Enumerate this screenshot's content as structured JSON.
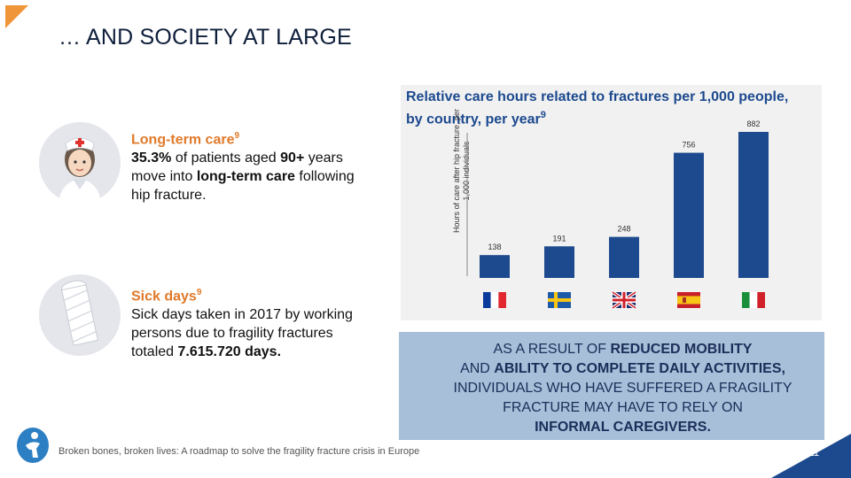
{
  "slide": {
    "title": "… AND SOCIETY AT LARGE",
    "page_number": "11",
    "footer": "Broken bones, broken lives: A roadmap to solve the fragility fracture crisis in Europe",
    "colors": {
      "accent": "#f0953a",
      "bar": "#1d4a8f",
      "callout_bg": "#a7bfd9"
    }
  },
  "long_term_care": {
    "heading": "Long-term care",
    "sup": "9",
    "line1_bold": "35.3%",
    "line1_rest": " of patients aged ",
    "line1_bold2": "90+",
    "line1_end": " years",
    "line2_pre": "move into ",
    "line2_bold": "long-term care",
    "line2_rest": " following",
    "line3": "hip fracture.",
    "icon": "nurse-icon"
  },
  "sick_days": {
    "heading": "Sick days",
    "sup": "9",
    "line1": "Sick days taken in 2017 by working",
    "line2": "persons due to fragility fractures",
    "line3_pre": "totaled ",
    "line3_bold": "7.615.720 days.",
    "icon": "bandaged-arm-icon"
  },
  "callout": {
    "line1_pre": "AS A RESULT OF ",
    "line1_bold": "REDUCED MOBILITY",
    "line2_pre": "AND ",
    "line2_bold": "ABILITY TO COMPLETE DAILY ACTIVITIES,",
    "line3": "INDIVIDUALS WHO HAVE SUFFERED A FRAGILITY",
    "line4": "FRACTURE MAY HAVE TO RELY ON",
    "line5_bold": "INFORMAL CAREGIVERS."
  },
  "chart_data": {
    "type": "bar",
    "title": "Relative care hours related to fractures per 1,000 people, by country, per year",
    "title_sup": "9",
    "ylabel": "Hours of care after hip fracture, per 1,000 individuals",
    "categories": [
      "France",
      "Sweden",
      "United Kingdom",
      "Spain",
      "Italy"
    ],
    "values": [
      138,
      191,
      248,
      756,
      882
    ],
    "value_labels": [
      "138",
      "191",
      "248",
      "756",
      "882"
    ],
    "grid": false,
    "legend": "none"
  }
}
